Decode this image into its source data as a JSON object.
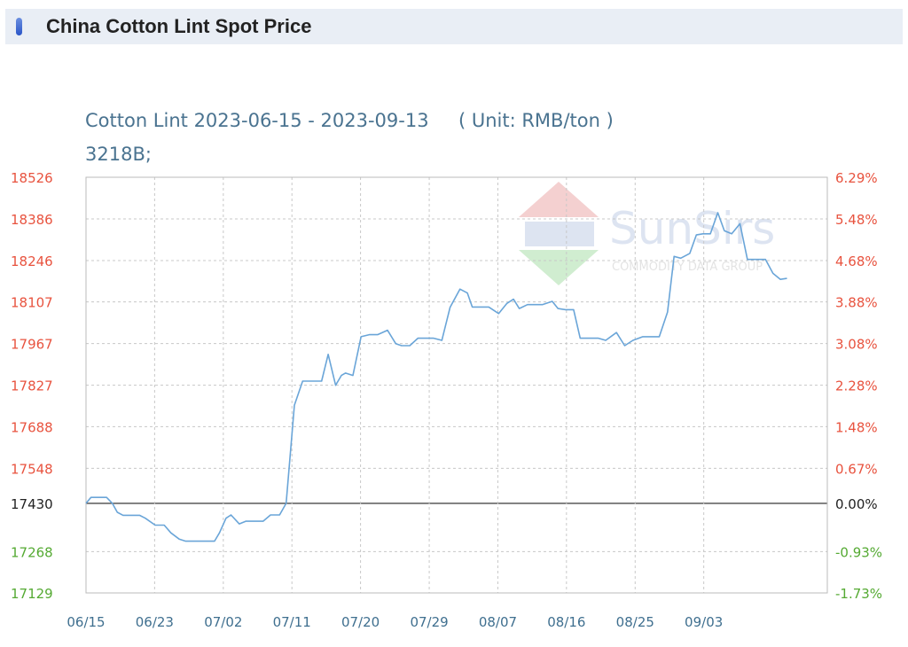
{
  "header": {
    "title": "China Cotton Lint Spot Price"
  },
  "chart_data": {
    "type": "line",
    "title": "Cotton Lint 2023-06-15 - 2023-09-13     ( Unit: RMB/ton )",
    "subtitle": "3218B;",
    "x_tick_labels": [
      "06/15",
      "06/23",
      "07/02",
      "07/11",
      "07/20",
      "07/29",
      "08/07",
      "08/16",
      "08/25",
      "09/03"
    ],
    "y_tick_labels": [
      "18526",
      "18386",
      "18246",
      "18107",
      "17967",
      "17827",
      "17688",
      "17548",
      "17430",
      "17268",
      "17129"
    ],
    "y2_tick_labels": [
      "6.29%",
      "5.48%",
      "4.68%",
      "3.88%",
      "3.08%",
      "2.28%",
      "1.48%",
      "0.67%",
      "0.00%",
      "-0.93%",
      "-1.73%"
    ],
    "ylim": [
      17129,
      18526
    ],
    "baseline": 17430,
    "x_days_range": [
      0,
      90
    ],
    "grid": true,
    "colors": {
      "line": "#6aa5d8",
      "above": "#e8533f",
      "below": "#55aa33",
      "baseline": "#222222",
      "grid": "#c8c8c8"
    },
    "series": [
      {
        "values": [
          [
            0,
            17430
          ],
          [
            0.6,
            17450
          ],
          [
            1.2,
            17450
          ],
          [
            2.5,
            17450
          ],
          [
            3.2,
            17430
          ],
          [
            3.8,
            17400
          ],
          [
            4.5,
            17390
          ],
          [
            5.5,
            17390
          ],
          [
            6.5,
            17390
          ],
          [
            7.2,
            17380
          ],
          [
            8.4,
            17357
          ],
          [
            9.5,
            17357
          ],
          [
            10.3,
            17331
          ],
          [
            11.3,
            17310
          ],
          [
            12.1,
            17303
          ],
          [
            13.2,
            17303
          ],
          [
            15,
            17303
          ],
          [
            15.6,
            17303
          ],
          [
            16.2,
            17331
          ],
          [
            17,
            17380
          ],
          [
            17.6,
            17391
          ],
          [
            18.6,
            17361
          ],
          [
            19.4,
            17370
          ],
          [
            20.5,
            17370
          ],
          [
            21.5,
            17370
          ],
          [
            22.4,
            17391
          ],
          [
            23.5,
            17391
          ],
          [
            24.3,
            17430
          ],
          [
            25.3,
            17760
          ],
          [
            26.3,
            17841
          ],
          [
            27.6,
            17841
          ],
          [
            28.2,
            17841
          ],
          [
            28.6,
            17841
          ],
          [
            29.4,
            17931
          ],
          [
            30.3,
            17827
          ],
          [
            31,
            17860
          ],
          [
            31.5,
            17868
          ],
          [
            32.4,
            17860
          ],
          [
            33.4,
            17990
          ],
          [
            34.4,
            17997
          ],
          [
            35.4,
            17997
          ],
          [
            36.6,
            18012
          ],
          [
            37.6,
            17967
          ],
          [
            38.3,
            17960
          ],
          [
            39.3,
            17960
          ],
          [
            40.3,
            17985
          ],
          [
            41.4,
            17985
          ],
          [
            42.2,
            17985
          ],
          [
            43.2,
            17978
          ],
          [
            44.2,
            18089
          ],
          [
            45.4,
            18150
          ],
          [
            46.3,
            18137
          ],
          [
            46.9,
            18090
          ],
          [
            47.8,
            18090
          ],
          [
            48.9,
            18090
          ],
          [
            50.1,
            18068
          ],
          [
            51.1,
            18102
          ],
          [
            51.9,
            18116
          ],
          [
            52.6,
            18085
          ],
          [
            53.6,
            18098
          ],
          [
            54.5,
            18098
          ],
          [
            55.4,
            18098
          ],
          [
            56.6,
            18109
          ],
          [
            57.3,
            18085
          ],
          [
            58.2,
            18081
          ],
          [
            59.2,
            18081
          ],
          [
            60,
            17985
          ],
          [
            61.1,
            17985
          ],
          [
            62.2,
            17985
          ],
          [
            63.1,
            17978
          ],
          [
            64.4,
            18004
          ],
          [
            65.4,
            17960
          ],
          [
            66.4,
            17978
          ],
          [
            67.6,
            17990
          ],
          [
            68.6,
            17990
          ],
          [
            69.6,
            17990
          ],
          [
            70.6,
            18073
          ],
          [
            71.4,
            18260
          ],
          [
            72.2,
            18254
          ],
          [
            73.3,
            18270
          ],
          [
            74.1,
            18332
          ],
          [
            74.9,
            18336
          ],
          [
            75.8,
            18336
          ],
          [
            76.7,
            18407
          ],
          [
            77.5,
            18346
          ],
          [
            78.4,
            18336
          ],
          [
            79.4,
            18370
          ],
          [
            80.3,
            18250
          ],
          [
            81.4,
            18250
          ],
          [
            82.5,
            18250
          ],
          [
            83.4,
            18203
          ],
          [
            84.3,
            18183
          ],
          [
            85.1,
            18186
          ]
        ]
      }
    ]
  }
}
